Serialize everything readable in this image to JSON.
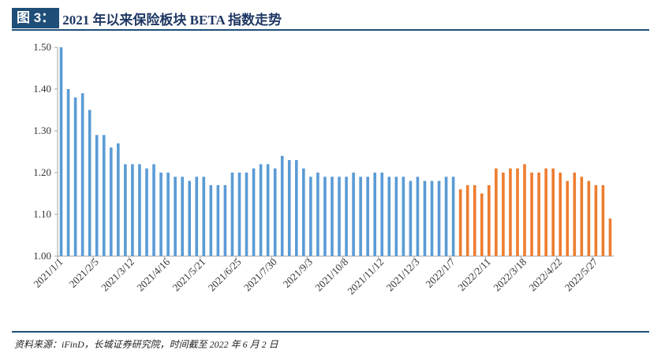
{
  "header": {
    "fig_label": "图 3：",
    "title": "2021 年以来保险板块 BETA 指数走势"
  },
  "footer": {
    "source": "资料来源：iFinD，长城证券研究院，时间截至 2022 年 6 月 2 日"
  },
  "colors": {
    "series_2021": "#5b9bd5",
    "series_2022": "#ed7d31",
    "axis": "#a6a6a6",
    "rule": "#1f4e79"
  },
  "chart_data": {
    "type": "bar",
    "title": "2021 年以来保险板块 BETA 指数走势",
    "xlabel": "",
    "ylabel": "",
    "ylim": [
      1.0,
      1.5
    ],
    "yticks": [
      "1.00",
      "1.10",
      "1.20",
      "1.30",
      "1.40",
      "1.50"
    ],
    "xtick_labels": [
      "2021/1/1",
      "2021/2/5",
      "2021/3/12",
      "2021/4/16",
      "2021/5/21",
      "2021/6/25",
      "2021/7/30",
      "2021/9/3",
      "2021/10/8",
      "2021/11/12",
      "2021/12/3",
      "2022/1/7",
      "2022/2/11",
      "2022/3/18",
      "2022/4/22",
      "2022/5/27"
    ],
    "series": [
      {
        "name": "2021",
        "values": [
          1.5,
          1.4,
          1.38,
          1.39,
          1.35,
          1.29,
          1.29,
          1.26,
          1.27,
          1.22,
          1.22,
          1.22,
          1.21,
          1.22,
          1.2,
          1.2,
          1.19,
          1.19,
          1.18,
          1.19,
          1.19,
          1.17,
          1.17,
          1.17,
          1.2,
          1.2,
          1.2,
          1.21,
          1.22,
          1.22,
          1.21,
          1.24,
          1.23,
          1.23,
          1.21,
          1.19,
          1.2,
          1.19,
          1.19,
          1.19,
          1.19,
          1.2,
          1.19,
          1.19,
          1.2,
          1.2,
          1.19,
          1.19,
          1.19,
          1.18,
          1.19,
          1.18,
          1.18,
          1.18,
          1.19,
          1.19
        ]
      },
      {
        "name": "2022",
        "values": [
          1.16,
          1.17,
          1.17,
          1.15,
          1.17,
          1.21,
          1.2,
          1.21,
          1.21,
          1.22,
          1.2,
          1.2,
          1.21,
          1.21,
          1.2,
          1.18,
          1.2,
          1.19,
          1.18,
          1.17,
          1.17,
          1.09
        ]
      }
    ]
  }
}
